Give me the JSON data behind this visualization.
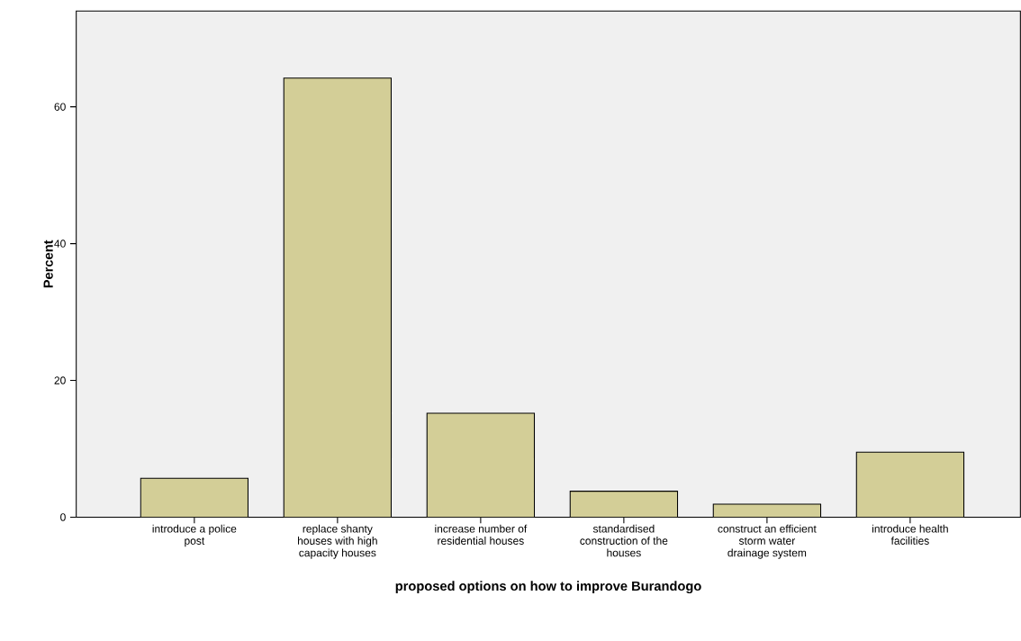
{
  "chart_data": {
    "type": "bar",
    "xlabel": "proposed options on how to improve Burandogo",
    "ylabel": "Percent",
    "categories": [
      "introduce a police post",
      "replace shanty houses with high capacity houses",
      "increase number of residential houses",
      "standardised construction of the houses",
      "construct an efficient storm water drainage system",
      "introduce health facilities"
    ],
    "values": [
      5.7,
      64.2,
      15.2,
      3.8,
      1.9,
      9.5
    ],
    "color": "#d3ce97",
    "ylim": [
      0,
      74
    ],
    "yticks": [
      0,
      20,
      40,
      60
    ]
  }
}
